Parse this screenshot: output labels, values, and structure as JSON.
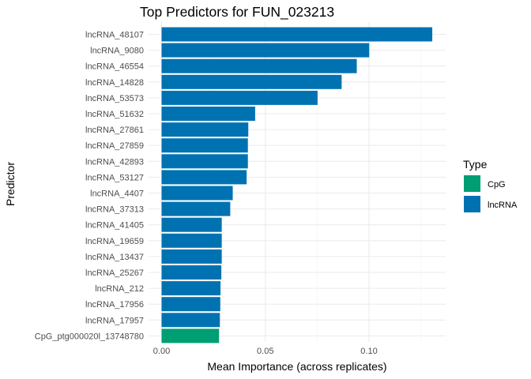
{
  "chart_data": {
    "type": "bar",
    "orientation": "horizontal",
    "title": "Top Predictors for FUN_023213",
    "xlabel": "Mean Importance (across replicates)",
    "ylabel": "Predictor",
    "xlim": [
      0,
      0.135
    ],
    "xticks": [
      0,
      0.05,
      0.1
    ],
    "xtick_labels": [
      "0.00",
      "0.05",
      "0.10"
    ],
    "grid": true,
    "legend": {
      "title": "Type",
      "position": "right",
      "entries": [
        {
          "label": "CpG",
          "color": "#009E73"
        },
        {
          "label": "lncRNA",
          "color": "#0072B2"
        }
      ]
    },
    "categories": [
      "lncRNA_48107",
      "lncRNA_9080",
      "lncRNA_46554",
      "lncRNA_14828",
      "lncRNA_53573",
      "lncRNA_51632",
      "lncRNA_27861",
      "lncRNA_27859",
      "lncRNA_42893",
      "lncRNA_53127",
      "lncRNA_4407",
      "lncRNA_37313",
      "lncRNA_41405",
      "lncRNA_19659",
      "lncRNA_13437",
      "lncRNA_25267",
      "lncRNA_212",
      "lncRNA_17956",
      "lncRNA_17957",
      "CpG_ptg000020l_13748780"
    ],
    "values": [
      0.1305,
      0.1001,
      0.0941,
      0.0868,
      0.0752,
      0.0451,
      0.0418,
      0.0416,
      0.0416,
      0.041,
      0.0343,
      0.0331,
      0.029,
      0.029,
      0.029,
      0.0288,
      0.0284,
      0.0283,
      0.0281,
      0.0277
    ],
    "types": [
      "lncRNA",
      "lncRNA",
      "lncRNA",
      "lncRNA",
      "lncRNA",
      "lncRNA",
      "lncRNA",
      "lncRNA",
      "lncRNA",
      "lncRNA",
      "lncRNA",
      "lncRNA",
      "lncRNA",
      "lncRNA",
      "lncRNA",
      "lncRNA",
      "lncRNA",
      "lncRNA",
      "lncRNA",
      "CpG"
    ]
  }
}
